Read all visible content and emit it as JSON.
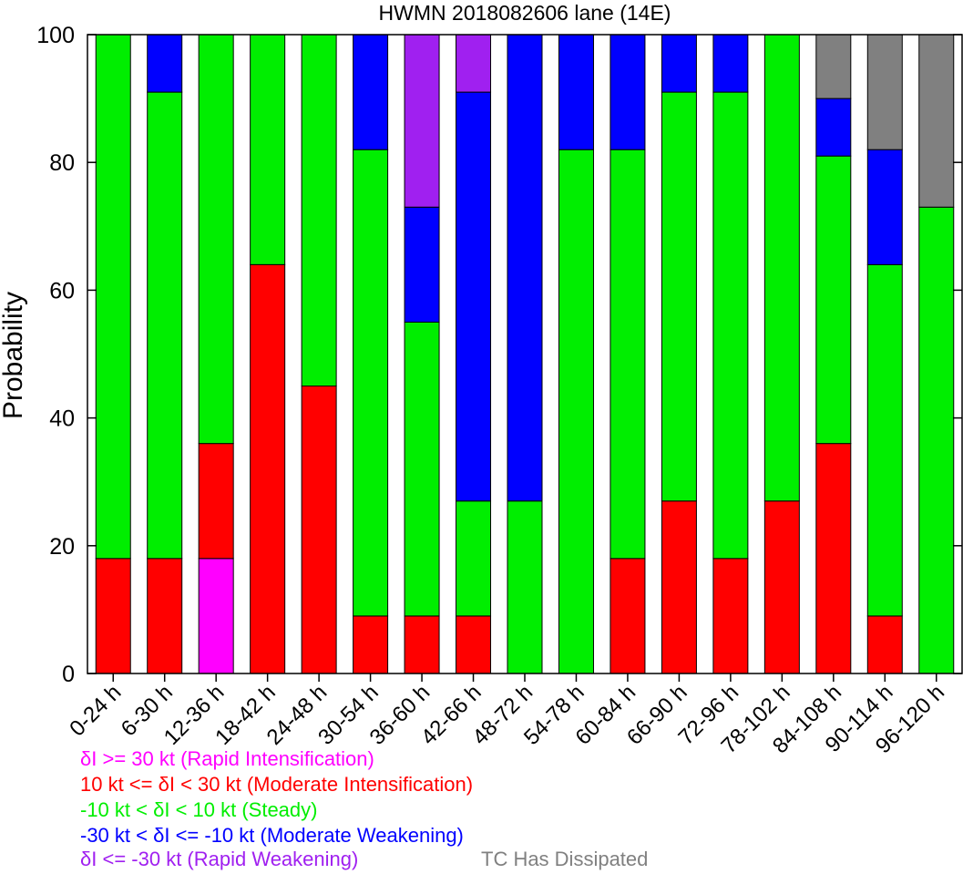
{
  "chart_data": {
    "type": "bar",
    "stacked": true,
    "title": "HWMN 2018082606 lane (14E)",
    "ylabel": "Probability",
    "xlabel": "",
    "ylim": [
      0,
      100
    ],
    "yticks": [
      0,
      20,
      40,
      60,
      80,
      100
    ],
    "categories": [
      "0-24 h",
      "6-30 h",
      "12-36 h",
      "18-42 h",
      "24-48 h",
      "30-54 h",
      "36-60 h",
      "42-66 h",
      "48-72 h",
      "54-78 h",
      "60-84 h",
      "66-90 h",
      "72-96 h",
      "78-102 h",
      "84-108 h",
      "90-114 h",
      "96-120 h"
    ],
    "series": [
      {
        "name": "δI >= 30 kt (Rapid Intensification)",
        "color": "#ff00ff",
        "values": [
          0,
          0,
          18,
          0,
          0,
          0,
          0,
          0,
          0,
          0,
          0,
          0,
          0,
          0,
          0,
          0,
          0
        ]
      },
      {
        "name": "10 kt <= δI < 30 kt (Moderate Intensification)",
        "color": "#ff0000",
        "values": [
          18,
          18,
          18,
          64,
          45,
          9,
          9,
          9,
          0,
          0,
          18,
          27,
          18,
          27,
          36,
          9,
          0
        ]
      },
      {
        "name": "-10 kt < δI < 10 kt (Steady)",
        "color": "#00ee00",
        "values": [
          82,
          73,
          64,
          36,
          55,
          73,
          46,
          18,
          27,
          82,
          64,
          64,
          73,
          73,
          45,
          55,
          73
        ]
      },
      {
        "name": "-30 kt < δI <= -10 kt (Moderate Weakening)",
        "color": "#0000ff",
        "values": [
          0,
          9,
          0,
          0,
          0,
          18,
          18,
          64,
          73,
          18,
          18,
          9,
          9,
          0,
          9,
          18,
          0
        ]
      },
      {
        "name": "δI <= -30 kt (Rapid Weakening)",
        "color": "#a020f0",
        "values": [
          0,
          0,
          0,
          0,
          0,
          0,
          27,
          9,
          0,
          0,
          0,
          0,
          0,
          0,
          0,
          0,
          0
        ]
      },
      {
        "name": "TC Has Dissipated",
        "color": "#808080",
        "values": [
          0,
          0,
          0,
          0,
          0,
          0,
          0,
          0,
          0,
          0,
          0,
          0,
          0,
          0,
          10,
          18,
          27
        ]
      }
    ],
    "grid": false,
    "legend_position": "bottom-left"
  }
}
